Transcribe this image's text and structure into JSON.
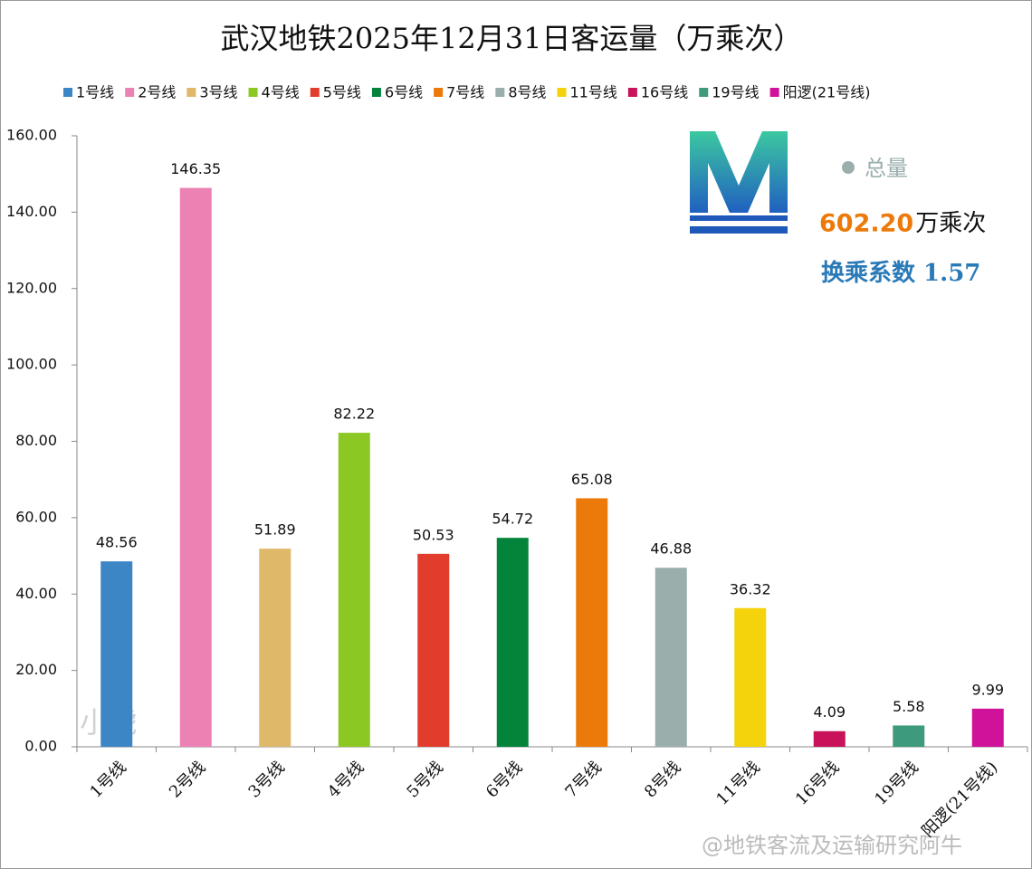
{
  "chart_data": {
    "type": "bar",
    "title": "武汉地铁2025年12月31日客运量（万乘次）",
    "categories": [
      "1号线",
      "2号线",
      "3号线",
      "4号线",
      "5号线",
      "6号线",
      "7号线",
      "8号线",
      "11号线",
      "16号线",
      "19号线",
      "阳逻(21号线)"
    ],
    "values": [
      48.56,
      146.35,
      51.89,
      82.22,
      50.53,
      54.72,
      65.08,
      46.88,
      36.32,
      4.09,
      5.58,
      9.99
    ],
    "colors": [
      "#3d86c6",
      "#ec82b4",
      "#dfb86a",
      "#8cc824",
      "#e23c2d",
      "#04843a",
      "#ec7a0a",
      "#9aaeac",
      "#f4d20c",
      "#c8125a",
      "#3e9a7c",
      "#d0129a"
    ],
    "ylim": [
      0,
      160
    ],
    "yticks": [
      {
        "value": 0,
        "label": "0.00"
      },
      {
        "value": 20,
        "label": "20.00"
      },
      {
        "value": 40,
        "label": "40.00"
      },
      {
        "value": 60,
        "label": "60.00"
      },
      {
        "value": 80,
        "label": "80.00"
      },
      {
        "value": 100,
        "label": "100.00"
      },
      {
        "value": 120,
        "label": "120.00"
      },
      {
        "value": 140,
        "label": "140.00"
      },
      {
        "value": 160,
        "label": "160.00"
      }
    ],
    "grid": false,
    "annotations": {
      "total_label": "总量",
      "total_value": "602.20",
      "total_unit": "万乘次",
      "transfer": "换乘系数 1.57",
      "watermark_left": "小虎",
      "watermark_right": "@地铁客流及运输研究阿牛"
    }
  }
}
